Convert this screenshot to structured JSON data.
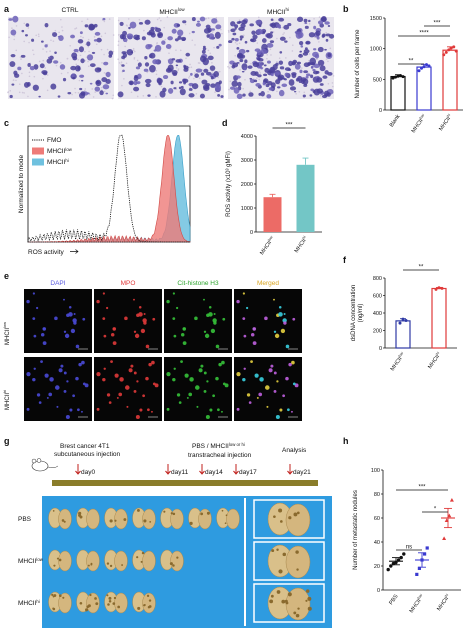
{
  "panels": {
    "a": {
      "label": "a",
      "titles": [
        "CTRL",
        "MHCII",
        "MHCII"
      ],
      "sups": [
        "low",
        "",
        "hi"
      ]
    },
    "b": {
      "label": "b"
    },
    "c": {
      "label": "c",
      "legend": [
        {
          "name": "FMO",
          "sup": ""
        },
        {
          "name": "MHCII",
          "sup": "low"
        },
        {
          "name": "MHCII",
          "sup": "hi"
        }
      ],
      "xlabel": "ROS activity",
      "ylabel": "Normalized to mode"
    },
    "d": {
      "label": "d"
    },
    "e": {
      "label": "e",
      "channels": [
        "DAPI",
        "MPO",
        "Cit-histone H3",
        "Merged"
      ],
      "rows": [
        {
          "name": "MHCII",
          "sup": "low"
        },
        {
          "name": "MHCII",
          "sup": "hi"
        }
      ]
    },
    "f": {
      "label": "f"
    },
    "g": {
      "label": "g",
      "timeline": {
        "inj1_line1": "Brest cancer 4T1",
        "inj1_line2": "subcutaneous injection",
        "inj2_line1_pre": "PBS / MHCII",
        "inj2_line1_sup": "low or hi",
        "inj2_line2": "transtracheal injection",
        "analysis": "Analysis",
        "days": [
          "day0",
          "day11",
          "day14",
          "day17",
          "day21"
        ]
      },
      "rows": [
        {
          "name": "PBS",
          "sup": ""
        },
        {
          "name": "MHCII",
          "sup": "low"
        },
        {
          "name": "MHCII",
          "sup": "hi"
        }
      ]
    },
    "h": {
      "label": "h"
    }
  },
  "chart_data": [
    {
      "id": "b",
      "type": "bar",
      "categories": [
        "Blank",
        "MHCII low",
        "MHCII hi"
      ],
      "cat_labels": [
        {
          "name": "Blank",
          "sup": ""
        },
        {
          "name": "MHCII",
          "sup": "low"
        },
        {
          "name": "MHCII",
          "sup": "hi"
        }
      ],
      "values": [
        545,
        700,
        975
      ],
      "errors": [
        30,
        45,
        55
      ],
      "points": [
        [
          520,
          535,
          550,
          560,
          545
        ],
        [
          640,
          680,
          705,
          740,
          720
        ],
        [
          900,
          940,
          980,
          1010,
          1030,
          960
        ]
      ],
      "ylabel": "Number of cells per frame",
      "ylim": [
        0,
        1500
      ],
      "yticks": [
        0,
        500,
        1000,
        1500
      ],
      "colors": [
        "#111111",
        "#3a3ad0",
        "#e03a3a"
      ],
      "significance": [
        {
          "from": 0,
          "to": 1,
          "text": "**"
        },
        {
          "from": 0,
          "to": 2,
          "text": "****"
        },
        {
          "from": 1,
          "to": 2,
          "text": "***"
        }
      ]
    },
    {
      "id": "c",
      "type": "area",
      "xlabel": "ROS activity",
      "ylabel": "Normalized to mode",
      "grid": false
    },
    {
      "id": "d",
      "type": "bar",
      "categories": [
        "MHCII low",
        "MHCII hi"
      ],
      "cat_labels": [
        {
          "name": "MHCII",
          "sup": "low"
        },
        {
          "name": "MHCII",
          "sup": "hi"
        }
      ],
      "values": [
        1450,
        2800
      ],
      "errors": [
        120,
        280
      ],
      "ylabel": "ROS activity (x10³ gMFI)",
      "ylim": [
        0,
        4000
      ],
      "yticks": [
        0,
        1000,
        2000,
        3000,
        4000
      ],
      "colors": [
        "#ec6b66",
        "#73c6c6"
      ],
      "significance": [
        {
          "from": 0,
          "to": 1,
          "text": "***"
        }
      ]
    },
    {
      "id": "f",
      "type": "bar",
      "categories": [
        "MHCII low",
        "MHCII hi"
      ],
      "cat_labels": [
        {
          "name": "MHCII",
          "sup": "low"
        },
        {
          "name": "MHCII",
          "sup": "hi"
        }
      ],
      "values": [
        310,
        680
      ],
      "errors": [
        25,
        12
      ],
      "points": [
        [
          285,
          330,
          315
        ],
        [
          670,
          688,
          682
        ]
      ],
      "ylabel": "dsDNA concentration",
      "ylabel2": "(ng/ml)",
      "ylim": [
        0,
        800
      ],
      "yticks": [
        0,
        200,
        400,
        600,
        800
      ],
      "colors": [
        "#2f3aa5",
        "#e03a3a"
      ],
      "significance": [
        {
          "from": 0,
          "to": 1,
          "text": "**"
        }
      ]
    },
    {
      "id": "h",
      "type": "scatter",
      "categories": [
        "PBS",
        "MHCII low",
        "MHCII hi"
      ],
      "cat_labels": [
        {
          "name": "PBS",
          "sup": ""
        },
        {
          "name": "MHCII",
          "sup": "low"
        },
        {
          "name": "MHCII",
          "sup": "hi"
        }
      ],
      "points": [
        [
          17,
          20,
          22,
          23,
          25,
          27,
          30
        ],
        [
          13,
          18,
          25,
          30,
          35
        ],
        [
          43,
          58,
          62,
          75
        ]
      ],
      "means": [
        24,
        25,
        60
      ],
      "errors": [
        3,
        6,
        8
      ],
      "ylabel": "Number of metastatic nodules",
      "ylim": [
        0,
        100
      ],
      "yticks": [
        0,
        20,
        40,
        60,
        80,
        100
      ],
      "colors": [
        "#111111",
        "#3a3ad0",
        "#e03a3a"
      ],
      "significance": [
        {
          "from": 0,
          "to": 1,
          "text": "ns"
        },
        {
          "from": 1,
          "to": 2,
          "text": "*"
        },
        {
          "from": 0,
          "to": 2,
          "text": "***"
        }
      ]
    }
  ]
}
